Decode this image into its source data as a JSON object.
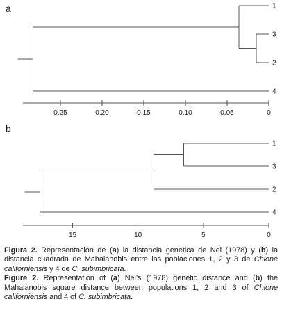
{
  "panels": [
    {
      "letter": "a",
      "tree": {
        "children": [
          {
            "children": [
              {
                "leaf": "1"
              },
              {
                "children": [
                  {
                    "leaf": "3"
                  },
                  {
                    "leaf": "2"
                  }
                ],
                "h": 0.015
              }
            ],
            "h": 0.036
          },
          {
            "leaf": "4"
          }
        ],
        "h": 0.283
      },
      "axis": {
        "reversed": true,
        "domain": [
          0.295,
          0.0
        ],
        "ticks": [
          "0.25",
          "0.20",
          "0.15",
          "0.10",
          "0.05",
          "0"
        ]
      }
    },
    {
      "letter": "b",
      "tree": {
        "children": [
          {
            "children": [
              {
                "children": [
                  {
                    "leaf": "1"
                  },
                  {
                    "leaf": "3"
                  }
                ],
                "h": 6.5
              },
              {
                "leaf": "2"
              }
            ],
            "h": 8.8
          },
          {
            "leaf": "4"
          }
        ],
        "h": 17.5
      },
      "axis": {
        "reversed": true,
        "domain": [
          18.8,
          0
        ],
        "ticks": [
          "15",
          "10",
          "5",
          "0"
        ]
      }
    }
  ],
  "caption": {
    "es_label": "Figura 2.",
    "es_text_html": " Representación de (<b>a</b>) la distancia genética de Nei (1978) y (<b>b</b>) la distancia cuadrada de Mahalanobis entre las poblaciones 1, 2 y 3 de <i>Chione californiensis</i> y 4 de <i>C. subimbricata</i>.",
    "en_label": "Figure 2.",
    "en_text_html": " Representation of (<b>a</b>) Nei’s (1978) genetic distance and (<b>b</b>) the Mahalanobis square distance between populations 1, 2 and 3 of <i>Chione californiensis</i> and 4 of <i>C. subimbricata</i>."
  }
}
